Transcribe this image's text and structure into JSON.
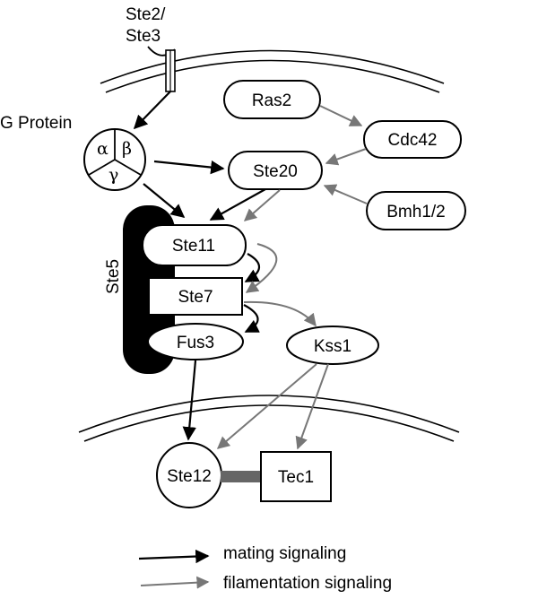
{
  "labels": {
    "receptor": [
      "Ste2/",
      "Ste3"
    ],
    "g_protein": "G Protein",
    "alpha": "α",
    "beta": "β",
    "gamma": "γ",
    "ras2": "Ras2",
    "cdc42": "Cdc42",
    "ste20": "Ste20",
    "bmh": "Bmh1/2",
    "ste5": "Ste5",
    "ste11": "Ste11",
    "ste7": "Ste7",
    "fus3": "Fus3",
    "kss1": "Kss1",
    "ste12": "Ste12",
    "tec1": "Tec1"
  },
  "legend": {
    "mating": "mating signaling",
    "filamentation": "filamentation signaling"
  },
  "colors": {
    "mating": "#000000",
    "filamentation": "#777777",
    "scaffold": "#000000",
    "link": "#666666"
  }
}
